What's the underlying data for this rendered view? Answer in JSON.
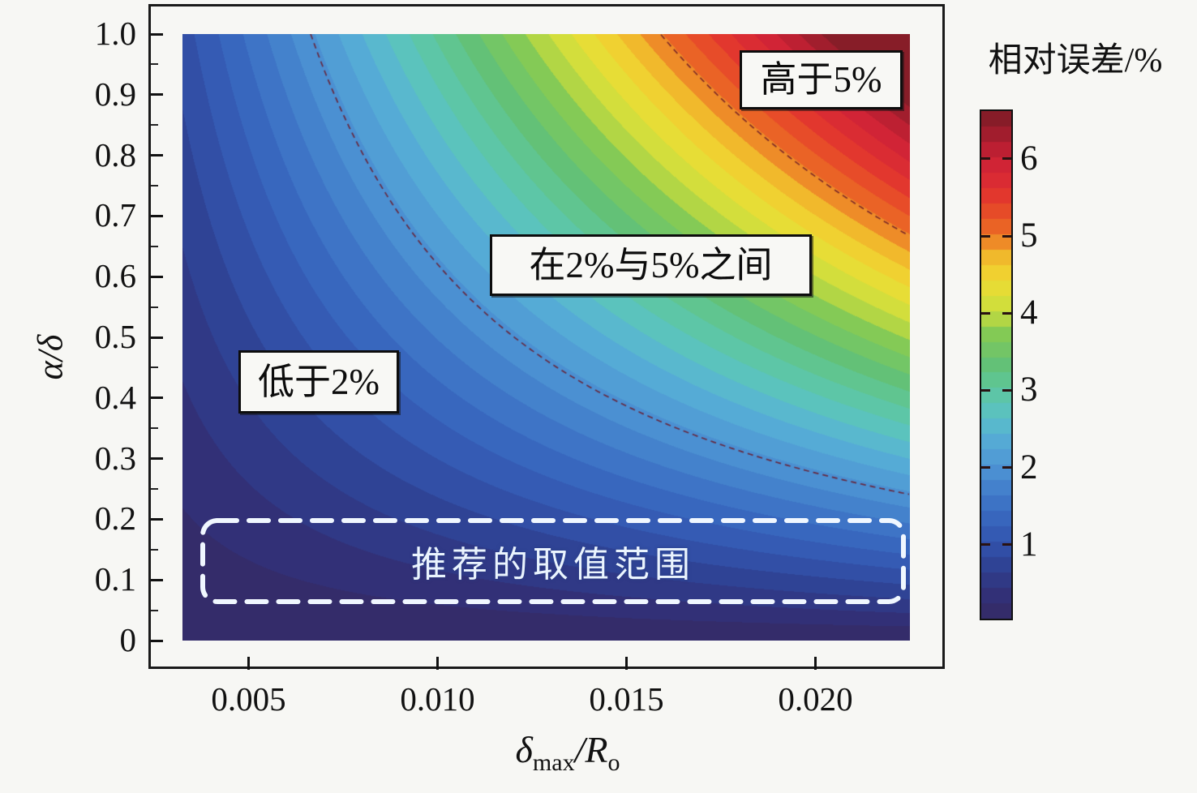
{
  "chart_data": {
    "type": "heatmap",
    "x_axis": {
      "label_parts": {
        "sym1": "δ",
        "sub1": "max",
        "slash": "/",
        "sym2": "R",
        "sub2": "o"
      },
      "range": [
        0.00325,
        0.0225
      ],
      "tick_labels": [
        "0.005",
        "0.010",
        "0.015",
        "0.020"
      ],
      "tick_values": [
        0.005,
        0.01,
        0.015,
        0.02
      ]
    },
    "y_axis": {
      "label": "α/δ",
      "range": [
        0,
        1
      ],
      "tick_labels": [
        "1.0",
        "0.9",
        "0.8",
        "0.7",
        "0.6",
        "0.5",
        "0.4",
        "0.3",
        "0.2",
        "0.1",
        "0"
      ],
      "tick_values": [
        1.0,
        0.9,
        0.8,
        0.7,
        0.6,
        0.5,
        0.4,
        0.3,
        0.2,
        0.1,
        0
      ],
      "minor_tick_step": 0.05
    },
    "colorbar": {
      "title": "相对误差/%",
      "range": [
        0.04,
        6.62
      ],
      "tick_labels": [
        "6",
        "5",
        "4",
        "3",
        "2",
        "1"
      ],
      "tick_values": [
        6,
        5,
        4,
        3,
        2,
        1
      ],
      "quantize_levels": 33,
      "colormap": [
        [
          0.0,
          "#352a64"
        ],
        [
          0.05,
          "#323179"
        ],
        [
          0.1,
          "#2f4192"
        ],
        [
          0.152,
          "#3355af"
        ],
        [
          0.21,
          "#3a6cc2"
        ],
        [
          0.26,
          "#4583cd"
        ],
        [
          0.303,
          "#4f97d5"
        ],
        [
          0.36,
          "#57b0d6"
        ],
        [
          0.4,
          "#5bc2c4"
        ],
        [
          0.455,
          "#5ec79c"
        ],
        [
          0.5,
          "#63c177"
        ],
        [
          0.56,
          "#83ca56"
        ],
        [
          0.58,
          "#a4d24a"
        ],
        [
          0.606,
          "#c6dc3f"
        ],
        [
          0.64,
          "#e3e138"
        ],
        [
          0.68,
          "#f0d231"
        ],
        [
          0.72,
          "#f1b32b"
        ],
        [
          0.76,
          "#ec6d25"
        ],
        [
          0.8,
          "#e74e28"
        ],
        [
          0.84,
          "#e1332f"
        ],
        [
          0.88,
          "#d62736"
        ],
        [
          0.909,
          "#cb2135"
        ],
        [
          0.95,
          "#a51e2e"
        ],
        [
          1.0,
          "#7a1c26"
        ]
      ]
    },
    "field": {
      "description": "relative error ≈ C·(x/x_max)^a · y^b, clamped to colorbar range",
      "C": 7.2,
      "a": 1.05,
      "b": 0.9,
      "x_max": 0.0225
    },
    "contours": {
      "levels": [
        2,
        5
      ],
      "color": "#6b1828"
    },
    "annotations": {
      "above5": "高于5%",
      "between": "在2%与5%之间",
      "below2": "低于2%",
      "recommended": "推荐的取值范围"
    }
  }
}
